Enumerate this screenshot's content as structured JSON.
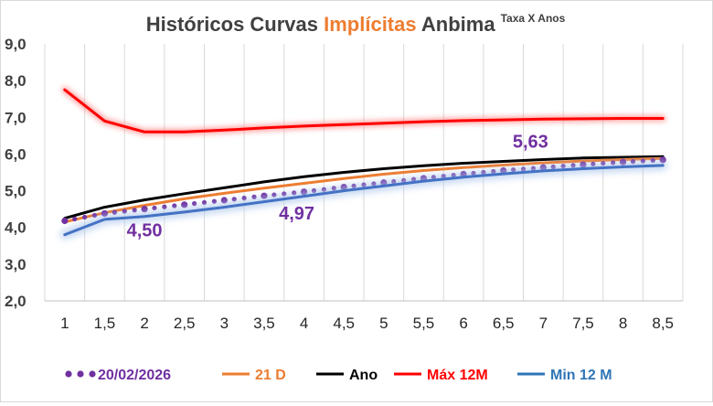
{
  "chart_data": {
    "type": "line",
    "title_parts": [
      {
        "text": "Históricos Curvas ",
        "color": "#404040"
      },
      {
        "text": "Implícitas",
        "color": "#ED7D31"
      },
      {
        "text": " Anbima",
        "color": "#404040"
      }
    ],
    "subtitle": "Taxa X Anos",
    "xlabel": "",
    "ylabel": "",
    "x_categories": [
      "1",
      "1,5",
      "2",
      "2,5",
      "3",
      "3,5",
      "4",
      "4,5",
      "5",
      "5,5",
      "6",
      "6,5",
      "7",
      "7,5",
      "8",
      "8,5"
    ],
    "x": [
      1,
      1.5,
      2,
      2.5,
      3,
      3.5,
      4,
      4.5,
      5,
      5.5,
      6,
      6.5,
      7,
      7.5,
      8,
      8.5
    ],
    "ylim": [
      2.0,
      9.0
    ],
    "y_ticks": [
      "2,0",
      "3,0",
      "4,0",
      "5,0",
      "6,0",
      "7,0",
      "8,0",
      "9,0"
    ],
    "grid": "vertical",
    "series": [
      {
        "name": "Máx 12M",
        "color": "#FF0000",
        "style": "solid-glow",
        "values": [
          7.75,
          6.9,
          6.6,
          6.6,
          6.65,
          6.71,
          6.76,
          6.8,
          6.84,
          6.88,
          6.91,
          6.93,
          6.95,
          6.96,
          6.97,
          6.97
        ]
      },
      {
        "name": "Ano",
        "color": "#000000",
        "style": "solid",
        "values": [
          4.25,
          4.55,
          4.75,
          4.92,
          5.08,
          5.24,
          5.38,
          5.5,
          5.6,
          5.68,
          5.75,
          5.8,
          5.85,
          5.89,
          5.91,
          5.93
        ]
      },
      {
        "name": "21 D",
        "color": "#ED7D31",
        "style": "solid",
        "values": [
          4.15,
          4.4,
          4.6,
          4.78,
          4.93,
          5.07,
          5.2,
          5.33,
          5.45,
          5.55,
          5.63,
          5.7,
          5.76,
          5.81,
          5.85,
          5.88
        ]
      },
      {
        "name": "20/02/2026",
        "color": "#7030A0",
        "style": "dotted",
        "values": [
          4.18,
          4.38,
          4.5,
          4.62,
          4.74,
          4.86,
          4.97,
          5.1,
          5.22,
          5.34,
          5.45,
          5.55,
          5.63,
          5.71,
          5.78,
          5.84
        ]
      },
      {
        "name": "Min 12 M",
        "color": "#4472C4",
        "style": "solid-glow",
        "values": [
          3.8,
          4.22,
          4.3,
          4.42,
          4.55,
          4.7,
          4.85,
          5.0,
          5.13,
          5.26,
          5.37,
          5.46,
          5.54,
          5.6,
          5.65,
          5.69
        ]
      }
    ],
    "annotations": [
      {
        "text": "4,50",
        "x": 2,
        "y": 4.5
      },
      {
        "text": "4,97",
        "x": 4,
        "y": 4.97
      },
      {
        "text": "5,63",
        "x": 7,
        "y": 5.63
      }
    ],
    "legend_position": "bottom",
    "legend": [
      {
        "label": "20/02/2026",
        "color": "#7030A0",
        "style": "dotted"
      },
      {
        "label": "21 D",
        "color": "#ED7D31",
        "style": "solid"
      },
      {
        "label": "Ano",
        "color": "#000000",
        "style": "solid"
      },
      {
        "label": "Máx 12M",
        "color": "#FF0000",
        "style": "solid"
      },
      {
        "label": "Min 12 M",
        "color": "#2E75B6",
        "style": "solid"
      }
    ]
  },
  "colors": {
    "annotation": "#7030A0",
    "grid": "#D9D9D9",
    "axis": "#BFBFBF"
  }
}
